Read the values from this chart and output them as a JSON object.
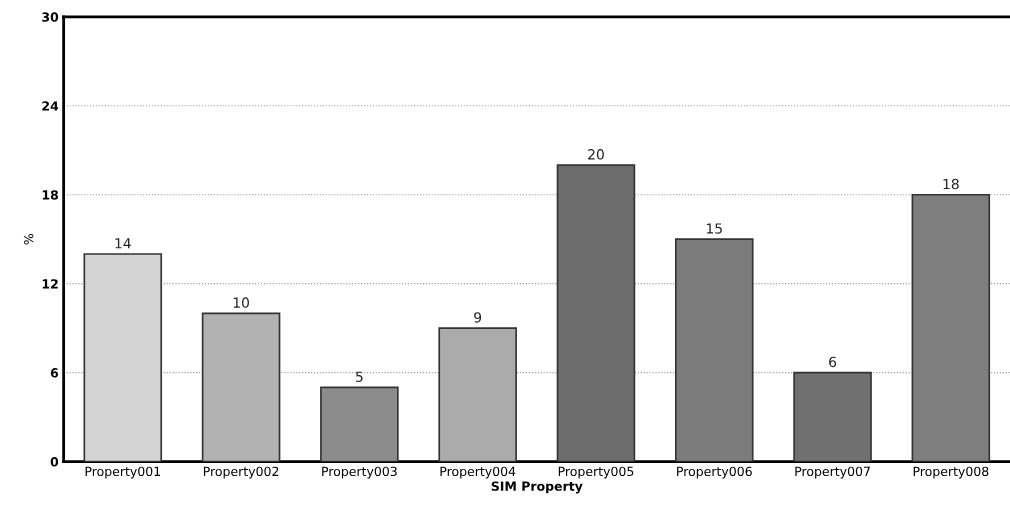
{
  "chart_data": {
    "type": "bar",
    "xlabel": "SIM Property",
    "ylabel": "%",
    "categories": [
      "Property001",
      "Property002",
      "Property003",
      "Property004",
      "Property005",
      "Property006",
      "Property007",
      "Property008"
    ],
    "values": [
      14,
      10,
      5,
      9,
      20,
      15,
      6,
      18
    ],
    "colors": [
      "#d4d4d4",
      "#b2b2b2",
      "#8c8c8c",
      "#ababab",
      "#6c6c6c",
      "#7c7c7c",
      "#707070",
      "#7e7e7e"
    ],
    "ylim": [
      0,
      30
    ],
    "yticks": [
      0,
      6,
      12,
      18,
      24,
      30
    ],
    "grid": "y",
    "data_labels": true
  }
}
